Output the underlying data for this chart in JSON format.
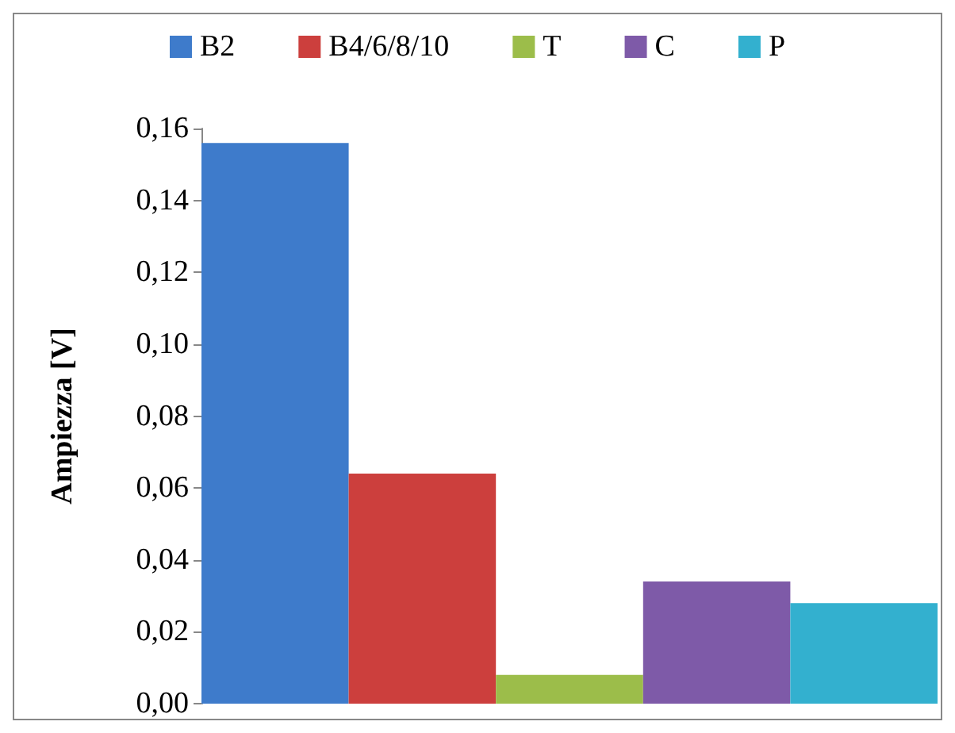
{
  "chart_data": {
    "type": "bar",
    "ylabel": "Ampiezza [V]",
    "categories": [
      null
    ],
    "series": [
      {
        "name": "B2",
        "color": "#3e7bcb",
        "values": [
          0.156
        ]
      },
      {
        "name": "B4/6/8/10",
        "color": "#cc3f3d",
        "values": [
          0.064
        ]
      },
      {
        "name": "T",
        "color": "#9cbd4a",
        "values": [
          0.008
        ]
      },
      {
        "name": "C",
        "color": "#7e5aa8",
        "values": [
          0.034
        ]
      },
      {
        "name": "P",
        "color": "#33b0cf",
        "values": [
          0.028
        ]
      }
    ],
    "ylim": [
      0,
      0.16
    ],
    "yticks": [
      {
        "value": 0,
        "label": "0,00"
      },
      {
        "value": 0.02,
        "label": "0,02"
      },
      {
        "value": 0.04,
        "label": "0,04"
      },
      {
        "value": 0.06,
        "label": "0,06"
      },
      {
        "value": 0.08,
        "label": "0,08"
      },
      {
        "value": 0.1,
        "label": "0,10"
      },
      {
        "value": 0.12,
        "label": "0,12"
      },
      {
        "value": 0.14,
        "label": "0,14"
      },
      {
        "value": 0.16,
        "label": "0,16"
      }
    ],
    "legend": "top",
    "grid": false
  }
}
